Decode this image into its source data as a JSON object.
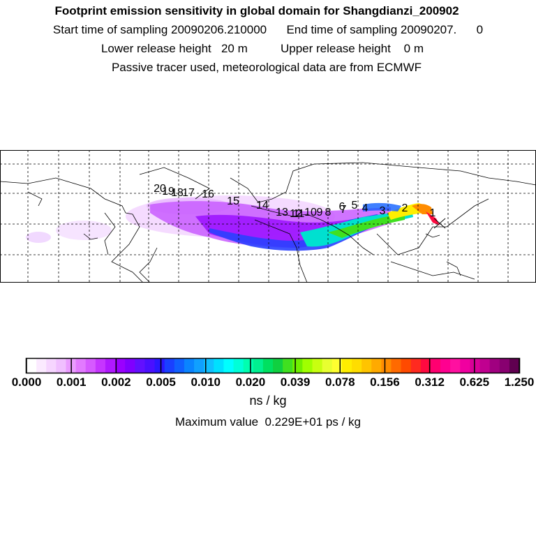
{
  "header": {
    "title": "Footprint emission sensitivity in global domain for Shangdianzi_200902",
    "sampling": "Start time of sampling 20090206.210000      End time of sampling 20090207.      0",
    "release": "Lower release height   20 m          Upper release height    0 m",
    "tracer": "Passive tracer used, meteorological data are from ECMWF"
  },
  "map": {
    "trajectory_labels": [
      "1",
      "2",
      "3",
      "4",
      "5",
      "6",
      "7",
      "8",
      "9",
      "10",
      "11",
      "12",
      "13",
      "14",
      "15",
      "16",
      "17",
      "18",
      "19",
      "20"
    ]
  },
  "colorbar": {
    "tick_labels": [
      "0.000",
      "0.001",
      "0.002",
      "0.005",
      "0.010",
      "0.020",
      "0.039",
      "0.078",
      "0.156",
      "0.312",
      "0.625",
      "1.250"
    ],
    "colors": [
      "#ffffff",
      "#fbeaff",
      "#f6d5ff",
      "#f0bfff",
      "#ea9cff",
      "#e27aff",
      "#d65aff",
      "#c635ff",
      "#b018ff",
      "#9a00ff",
      "#8000ff",
      "#6210ff",
      "#4a10ff",
      "#2a18ff",
      "#1a40ff",
      "#1060ff",
      "#0a84ff",
      "#10a0ff",
      "#10c0ff",
      "#00e0ff",
      "#00ffff",
      "#00ffd8",
      "#00ffb0",
      "#00f090",
      "#00e060",
      "#10d040",
      "#40e020",
      "#70f000",
      "#a0ff00",
      "#c8ff10",
      "#e8ff30",
      "#ffff30",
      "#ffee00",
      "#ffdd00",
      "#ffc400",
      "#ffaa00",
      "#ff8c00",
      "#ff6a00",
      "#ff4a00",
      "#ff2a20",
      "#ff0a40",
      "#ff0070",
      "#ff0090",
      "#ff10a0",
      "#f000a0",
      "#d80098",
      "#c00090",
      "#a00080",
      "#880070",
      "#600050"
    ],
    "units": "ns / kg"
  },
  "max_value": "Maximum value  0.229E+01 ps / kg"
}
